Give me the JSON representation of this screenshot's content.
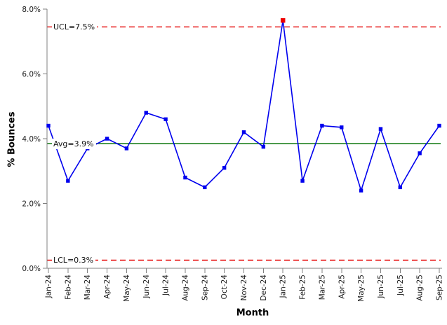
{
  "chart_data": {
    "type": "line",
    "subtype": "spc-control-chart",
    "title": "",
    "xlabel": "Month",
    "ylabel": "% Bounces",
    "categories": [
      "Jan-24",
      "Feb-24",
      "Mar-24",
      "Apr-24",
      "May-24",
      "Jun-24",
      "Jul-24",
      "Aug-24",
      "Sep-24",
      "Oct-24",
      "Nov-24",
      "Dec-24",
      "Jan-25",
      "Feb-25",
      "Mar-25",
      "Apr-25",
      "May-25",
      "Jun-25",
      "Jul-25",
      "Aug-25",
      "Sep-25"
    ],
    "series": [
      {
        "name": "% Bounces",
        "color": "#0000ee",
        "marker": "square",
        "values": [
          4.4,
          2.7,
          3.7,
          4.0,
          3.7,
          4.8,
          4.6,
          2.8,
          2.5,
          3.1,
          4.2,
          3.75,
          7.65,
          2.7,
          4.4,
          4.35,
          2.4,
          4.3,
          2.5,
          3.55,
          4.4
        ]
      }
    ],
    "outlier_point": {
      "category": "Jan-25",
      "index": 12,
      "value": 7.65,
      "color": "#ee0000",
      "meaning": "above UCL"
    },
    "control_lines": [
      {
        "id": "ucl",
        "label": "UCL=7.5%",
        "value": 7.45,
        "style": "dashed",
        "color": "#e60000"
      },
      {
        "id": "avg",
        "label": "Avg=3.9%",
        "value": 3.85,
        "style": "solid",
        "color": "#007000"
      },
      {
        "id": "lcl",
        "label": "LCL=0.3%",
        "value": 0.25,
        "style": "dashed",
        "color": "#e60000"
      }
    ],
    "y_axis": {
      "min": 0,
      "max": 8,
      "tick_step": 2,
      "tick_labels": [
        "0.0%",
        "2.0%",
        "4.0%",
        "6.0%",
        "8.0%"
      ]
    },
    "x_axis": {
      "tick_label_rotation": -90
    },
    "grid": false,
    "legend": false,
    "axis_color": "#808080",
    "text_color": "#1c1c1c"
  }
}
